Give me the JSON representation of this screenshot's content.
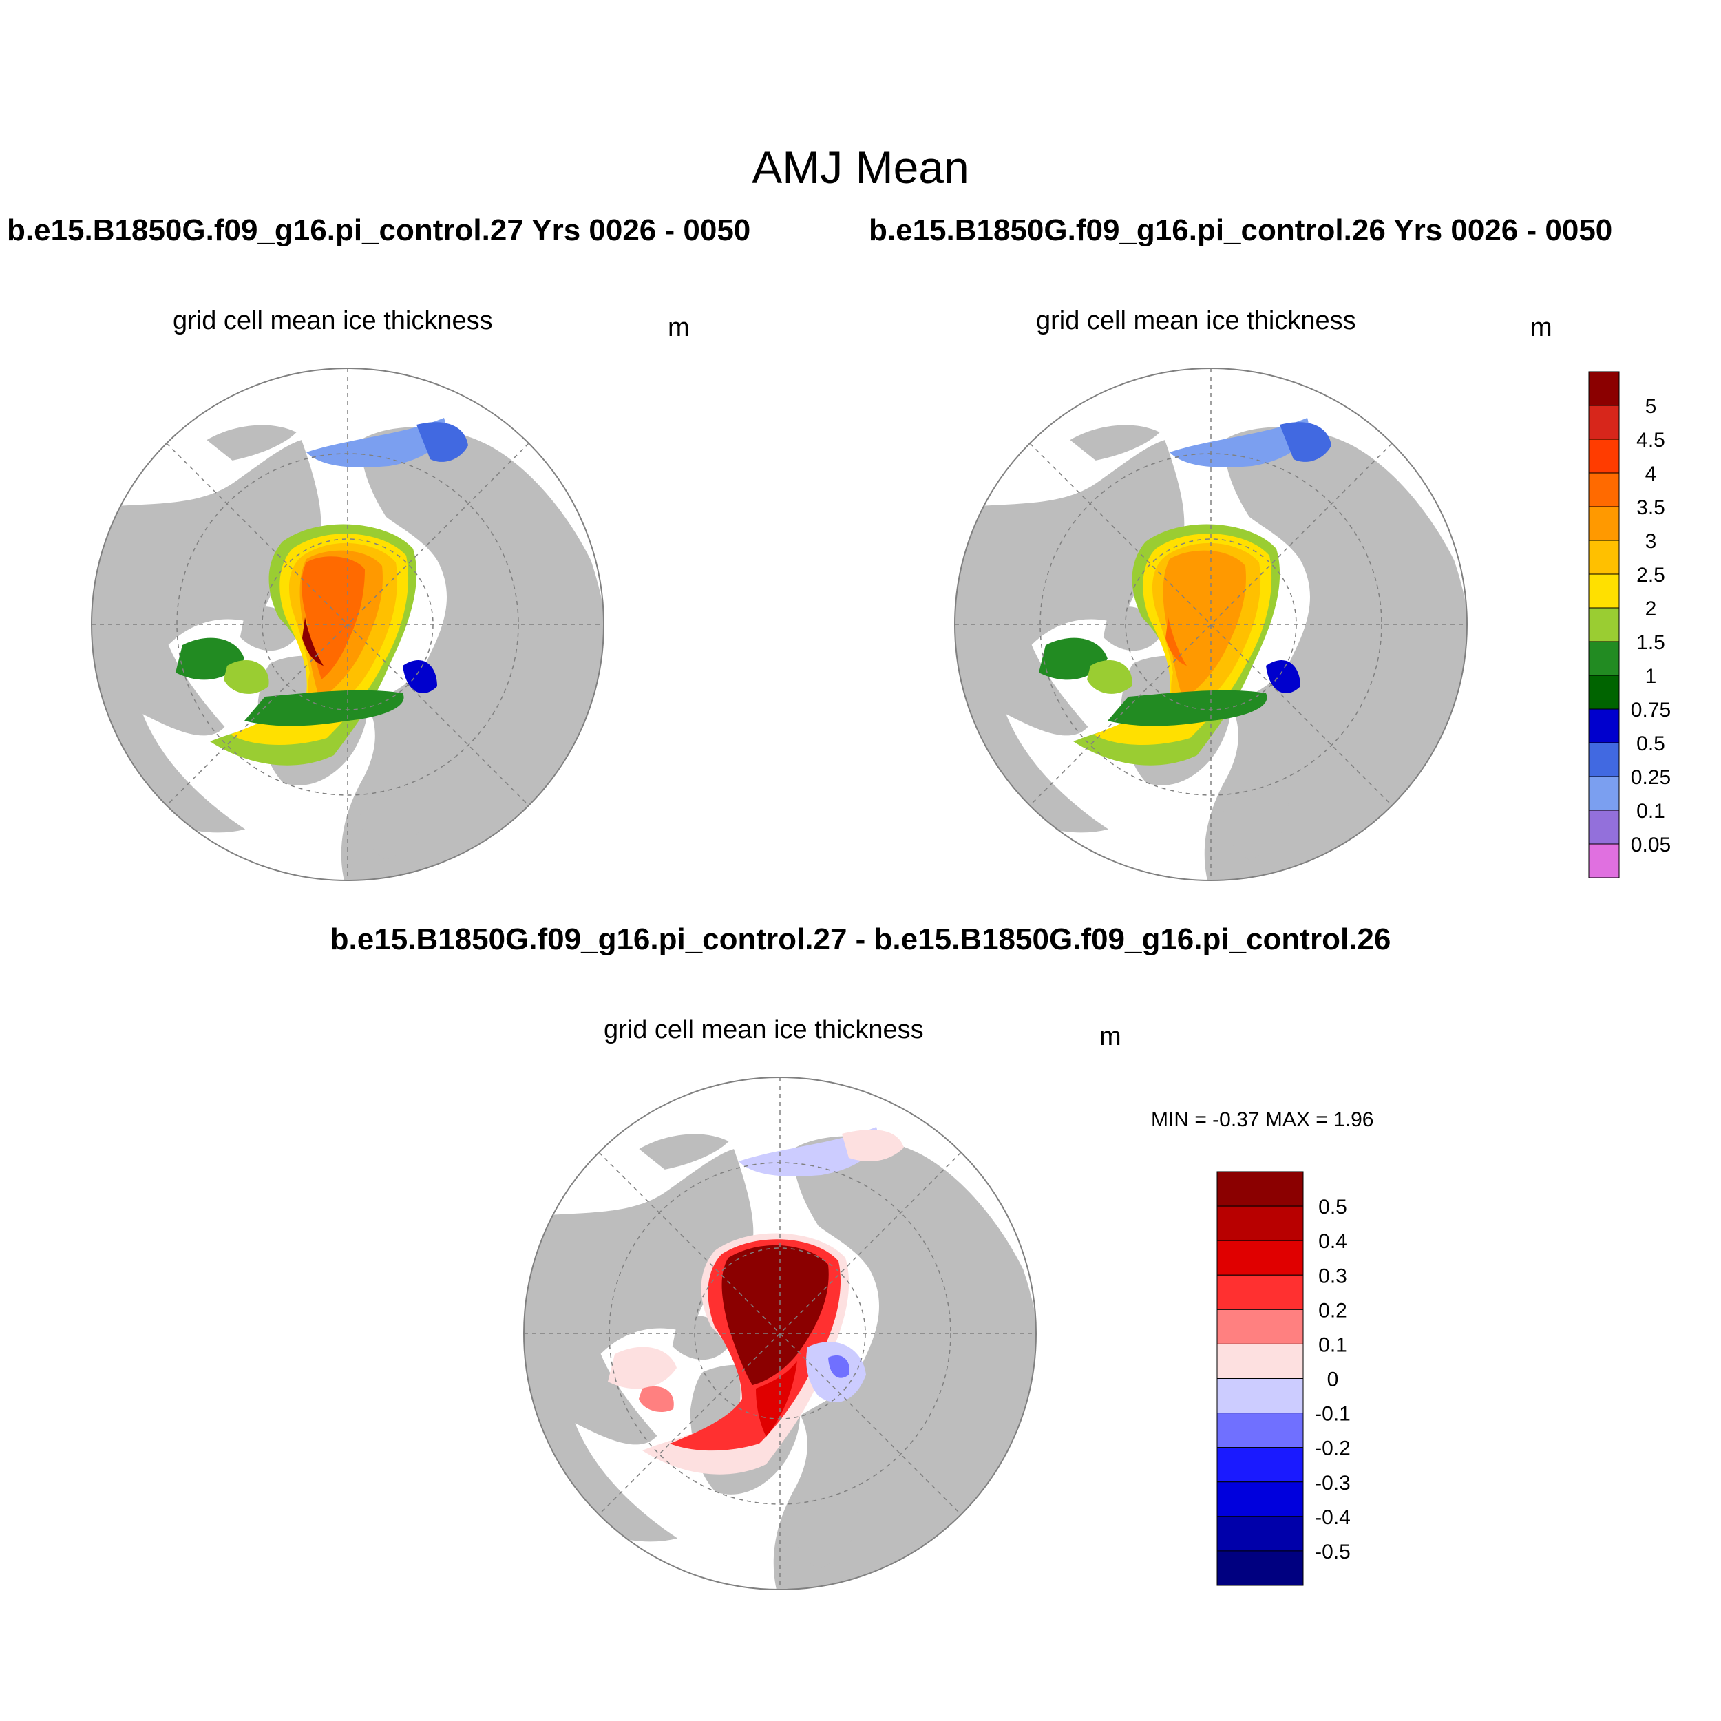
{
  "title": "AMJ Mean",
  "panels": [
    {
      "id": "case27",
      "case_title": "b.e15.B1850G.f09_g16.pi_control.27  Yrs 0026 - 0050",
      "variable": "grid cell mean ice thickness",
      "units": "m"
    },
    {
      "id": "case26",
      "case_title": "b.e15.B1850G.f09_g16.pi_control.26  Yrs 0026 - 0050",
      "variable": "grid cell mean ice thickness",
      "units": "m"
    },
    {
      "id": "difference",
      "case_title": "b.e15.B1850G.f09_g16.pi_control.27 - b.e15.B1850G.f09_g16.pi_control.26",
      "variable": "grid cell mean ice thickness",
      "units": "m",
      "minmax": "MIN =  -0.37 MAX =   1.96",
      "min": -0.37,
      "max": 1.96
    }
  ],
  "colorbars": {
    "thickness": {
      "labels": [
        "5",
        "4.5",
        "4",
        "3.5",
        "3",
        "2.5",
        "2",
        "1.5",
        "1",
        "0.75",
        "0.5",
        "0.25",
        "0.1",
        "0.05"
      ],
      "colors": [
        "#8b0000",
        "#d7261b",
        "#ff3c00",
        "#ff6a00",
        "#ff9900",
        "#ffc000",
        "#ffe000",
        "#9acd32",
        "#228b22",
        "#006400",
        "#0000cd",
        "#4169e1",
        "#7b9ff0",
        "#9370db",
        "#e070e0"
      ]
    },
    "difference": {
      "labels": [
        "0.5",
        "0.4",
        "0.3",
        "0.2",
        "0.1",
        "0",
        "-0.1",
        "-0.2",
        "-0.3",
        "-0.4",
        "-0.5"
      ],
      "colors": [
        "#8b0000",
        "#b80000",
        "#e00000",
        "#ff3030",
        "#ff8080",
        "#fde0e0",
        "#ccccff",
        "#7070ff",
        "#1a1aff",
        "#0000dd",
        "#0000aa",
        "#000080"
      ]
    }
  },
  "map_colors": {
    "land": "#bdbdbd",
    "ocean": "#ffffff",
    "grid": "#808080"
  }
}
